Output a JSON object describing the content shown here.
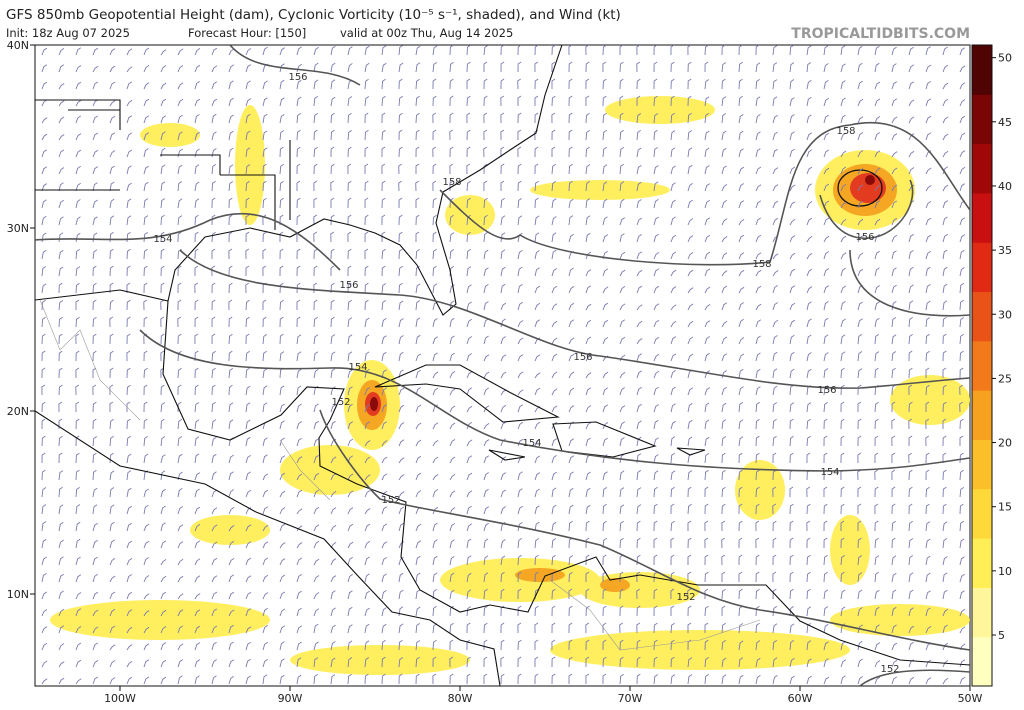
{
  "header": {
    "title": "GFS 850mb Geopotential Height (dam), Cyclonic Vorticity (10⁻⁵ s⁻¹, shaded), and Wind (kt)",
    "init": "Init: 18z Aug 07 2025",
    "forecast_hour": "Forecast Hour: [150]",
    "valid": "valid at 00z Thu, Aug 14 2025",
    "source": "TROPICALTIDBITS.COM"
  },
  "lat_labels": [
    {
      "value": 40,
      "label": "40N"
    },
    {
      "value": 30,
      "label": "30N"
    },
    {
      "value": 20,
      "label": "20N"
    },
    {
      "value": 10,
      "label": "10N"
    }
  ],
  "lon_labels": [
    {
      "value": -100,
      "label": "100W"
    },
    {
      "value": -90,
      "label": "90W"
    },
    {
      "value": -80,
      "label": "80W"
    },
    {
      "value": -70,
      "label": "70W"
    },
    {
      "value": -60,
      "label": "60W"
    },
    {
      "value": -50,
      "label": "50W"
    }
  ],
  "colorbar": {
    "ticks": [
      5,
      10,
      15,
      20,
      25,
      30,
      35,
      40,
      45,
      50
    ]
  },
  "contour_labels": [
    156,
    158,
    158,
    154,
    156,
    158,
    156,
    154,
    156,
    156,
    152,
    154,
    154,
    152,
    152,
    152
  ]
}
